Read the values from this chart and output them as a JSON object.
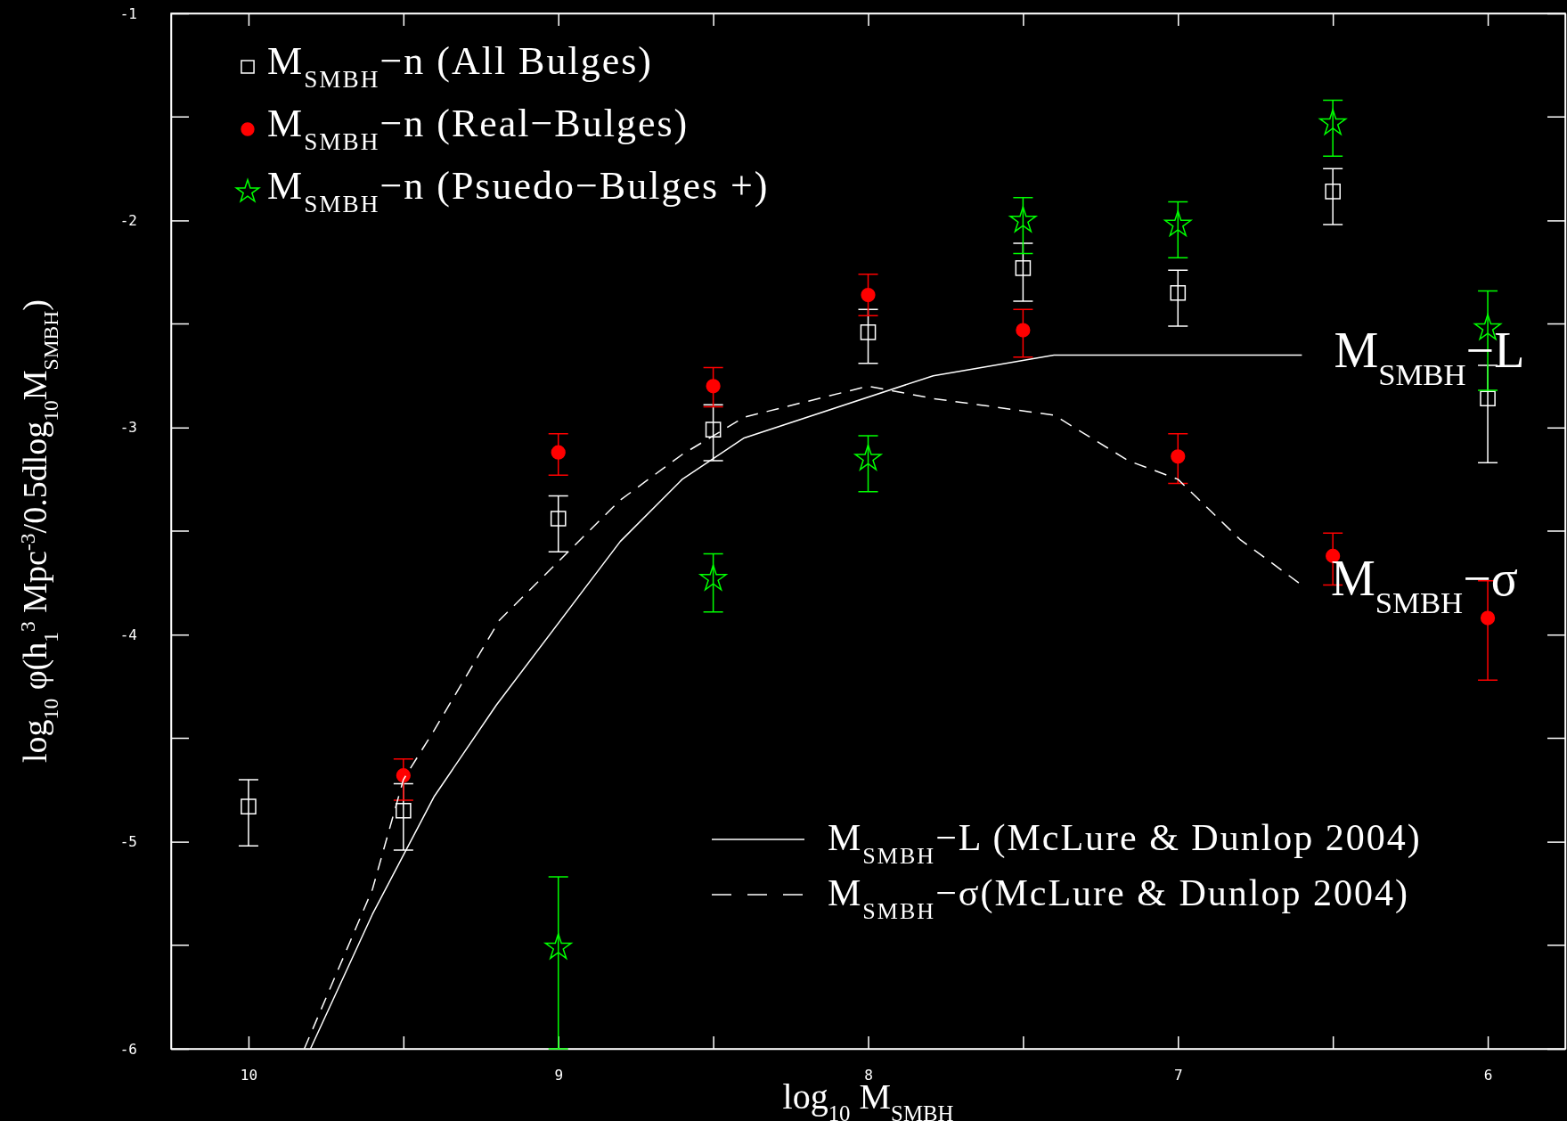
{
  "chart_data": {
    "type": "scatter",
    "xlabel": "log$_{10}$ M$_{SMBH}$",
    "ylabel": "log$_{10}$  φ(h$_{1}$$^{3}$ Mpc$^{-3}$/0.5dlog$_{10}$M$_{SMBH}$)",
    "xlim": [
      10.25,
      5.75
    ],
    "ylim": [
      -6,
      -1
    ],
    "xticks": [
      10,
      {
        "value": 9.5,
        "label": null
      },
      9,
      {
        "value": 8.5,
        "label": null
      },
      8,
      {
        "value": 7.5,
        "label": null
      },
      7,
      {
        "value": 6.5,
        "label": null
      },
      6
    ],
    "yticks": [
      -6,
      -5,
      -4,
      -3,
      -2,
      -1
    ],
    "grid": false,
    "legend": "top left",
    "series": [
      {
        "name": "M$_{SMBH}$−n (All Bulges)",
        "marker": "square",
        "color": "#ffffff",
        "x": [
          10,
          9.5,
          9,
          8.5,
          8,
          7.5,
          7,
          6.5,
          6
        ],
        "values": [
          -4.83,
          -4.85,
          -3.44,
          -3.01,
          -2.54,
          -2.23,
          -2.35,
          -1.86,
          -2.86
        ],
        "errors": [
          [
            -5.02,
            -4.7
          ],
          [
            -5.04,
            -4.72
          ],
          [
            -3.6,
            -3.33
          ],
          [
            -3.16,
            -2.89
          ],
          [
            -2.69,
            -2.43
          ],
          [
            -2.39,
            -2.11
          ],
          [
            -2.51,
            -2.24
          ],
          [
            -2.02,
            -1.75
          ],
          [
            -3.17,
            -2.7
          ]
        ]
      },
      {
        "name": "M$_{SMBH}$−n (Real−Bulges)",
        "marker": "circle",
        "color": "#ff0000",
        "x": [
          9.5,
          9,
          8.5,
          8,
          7.5,
          7,
          6.5,
          6
        ],
        "values": [
          -4.68,
          -3.12,
          -2.8,
          -2.36,
          -2.53,
          -3.14,
          -3.62,
          -3.92
        ],
        "errors": [
          [
            -4.8,
            -4.6
          ],
          [
            -3.23,
            -3.03
          ],
          [
            -2.9,
            -2.71
          ],
          [
            -2.46,
            -2.26
          ],
          [
            -2.66,
            -2.43
          ],
          [
            -3.27,
            -3.03
          ],
          [
            -3.76,
            -3.51
          ],
          [
            -4.22,
            -3.74
          ]
        ]
      },
      {
        "name": "M$_{SMBH}$−n (Psuedo−Bulges +)",
        "marker": "star",
        "color": "#00ff00",
        "x": [
          9,
          8.5,
          8,
          7.5,
          7,
          6.5,
          6
        ],
        "values": [
          -5.51,
          -3.73,
          -3.15,
          -2.0,
          -2.02,
          -1.53,
          -2.52
        ],
        "errors": [
          [
            -6.0,
            -5.17
          ],
          [
            -3.89,
            -3.61
          ],
          [
            -3.31,
            -3.04
          ],
          [
            -2.16,
            -1.89
          ],
          [
            -2.18,
            -1.91
          ],
          [
            -1.69,
            -1.42
          ],
          [
            -2.82,
            -2.34
          ]
        ]
      },
      {
        "name": "M$_{SMBH}$−L (McLure & Dunlop 2004)",
        "type": "line",
        "line_style": "solid",
        "marker": "none",
        "color": "#ffffff",
        "x": [
          9.8,
          9.6,
          9.4,
          9.2,
          8.8,
          8.6,
          8.4,
          7.79,
          7.4,
          6.6
        ],
        "values": [
          -6,
          -5.35,
          -4.78,
          -4.34,
          -3.55,
          -3.25,
          -3.05,
          -2.75,
          -2.65,
          -2.65
        ]
      },
      {
        "name": "M$_{SMBH}$−σ(McLure & Dunlop 2004)",
        "type": "line",
        "line_style": "dashed",
        "marker": "none",
        "color": "#ffffff",
        "x": [
          9.82,
          9.6,
          9.5,
          9.4,
          9.19,
          8.8,
          8.6,
          8.4,
          8.0,
          7.79,
          7.4,
          7.16,
          7.0,
          6.8,
          6.61
        ],
        "values": [
          -6,
          -5.23,
          -4.7,
          -4.46,
          -3.93,
          -3.35,
          -3.13,
          -2.95,
          -2.8,
          -2.86,
          -2.94,
          -3.16,
          -3.25,
          -3.54,
          -3.75
        ]
      }
    ],
    "annotations": [
      "M$_{SMBH}$−L",
      "M$_{SMBH}$−σ"
    ]
  }
}
